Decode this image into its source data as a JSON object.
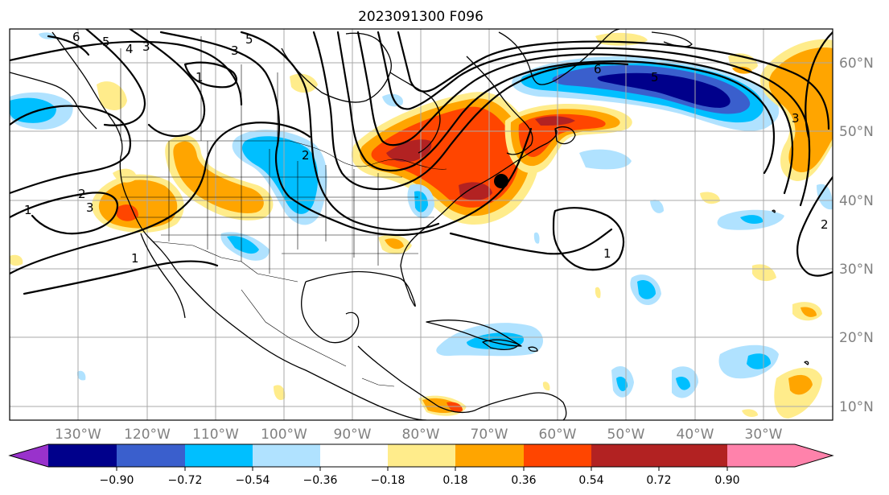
{
  "title": "2023091300 F096",
  "map": {
    "lon_labels": [
      "130°W",
      "120°W",
      "110°W",
      "100°W",
      "90°W",
      "80°W",
      "70°W",
      "60°W",
      "50°W",
      "40°W",
      "30°W"
    ],
    "lat_labels": [
      "60°N",
      "50°N",
      "40°N",
      "30°N",
      "20°N",
      "10°N"
    ],
    "contour_labels": [
      "6",
      "5",
      "4",
      "3",
      "5",
      "3",
      "1",
      "2",
      "1",
      "2",
      "3",
      "1",
      "6",
      "5",
      "3",
      "2",
      "1"
    ],
    "marker": "storm-center-dot"
  },
  "colorbar": {
    "colors": [
      "#9932cc",
      "#00008b",
      "#3a5fcd",
      "#00bfff",
      "#b0e2ff",
      "#ffffff",
      "#ffec8b",
      "#ffa500",
      "#ff4500",
      "#b22222",
      "#ff82ab"
    ],
    "tick_labels": [
      "−0.90",
      "−0.72",
      "−0.54",
      "−0.36",
      "−0.18",
      "0.18",
      "0.36",
      "0.54",
      "0.72",
      "0.90"
    ]
  }
}
